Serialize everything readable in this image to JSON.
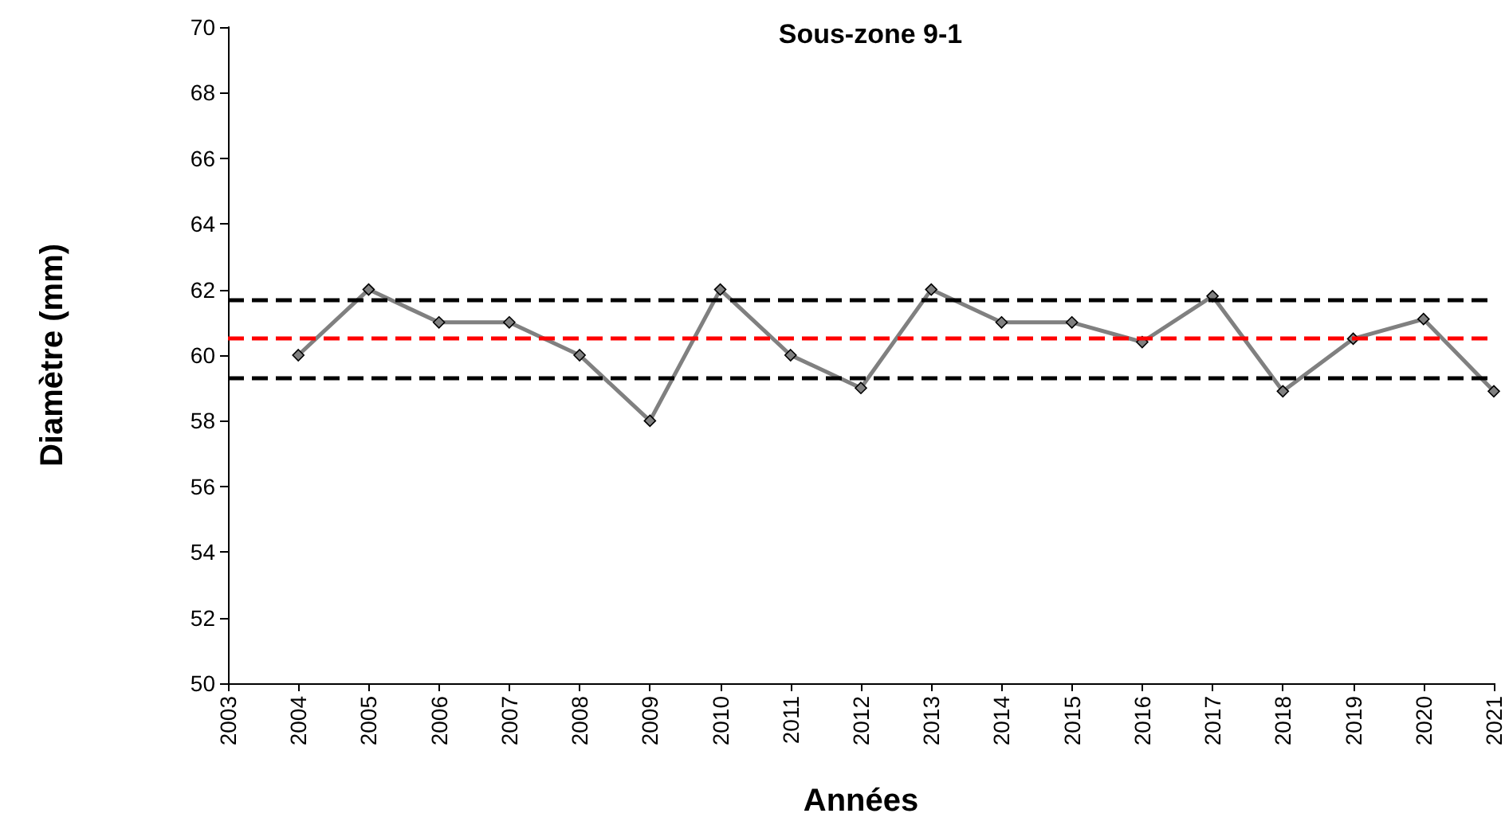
{
  "chart_data": {
    "type": "line",
    "title": "Sous-zone 9-1",
    "xlabel": "Années",
    "ylabel": "Diamètre (mm)",
    "x": [
      2004,
      2005,
      2006,
      2007,
      2008,
      2009,
      2010,
      2011,
      2012,
      2013,
      2014,
      2015,
      2016,
      2017,
      2018,
      2019,
      2020,
      2021
    ],
    "series": [
      {
        "color": "#808080",
        "values": [
          60,
          62,
          61,
          61,
          60,
          58,
          62,
          60,
          59,
          62,
          61,
          61,
          60.4,
          61.8,
          58.9,
          60.5,
          61.1,
          58.9
        ]
      }
    ],
    "xlim": [
      2003,
      2021
    ],
    "xticks": [
      2003,
      2004,
      2005,
      2006,
      2007,
      2008,
      2009,
      2010,
      2011,
      2012,
      2013,
      2014,
      2015,
      2016,
      2017,
      2018,
      2019,
      2020,
      2021
    ],
    "ylim": [
      50,
      70
    ],
    "yticks": [
      50,
      52,
      54,
      56,
      58,
      60,
      62,
      64,
      66,
      68,
      70
    ],
    "ref_lines": [
      {
        "axis": "y",
        "value": 61.7,
        "color": "#000000",
        "line_style": "dashed"
      },
      {
        "axis": "y",
        "value": 60.5,
        "color": "#ff0000",
        "line_style": "dashed"
      },
      {
        "axis": "y",
        "value": 59.3,
        "color": "#000000",
        "line_style": "dashed"
      }
    ],
    "grid": false,
    "marker": "diamond",
    "line_style": "solid"
  }
}
